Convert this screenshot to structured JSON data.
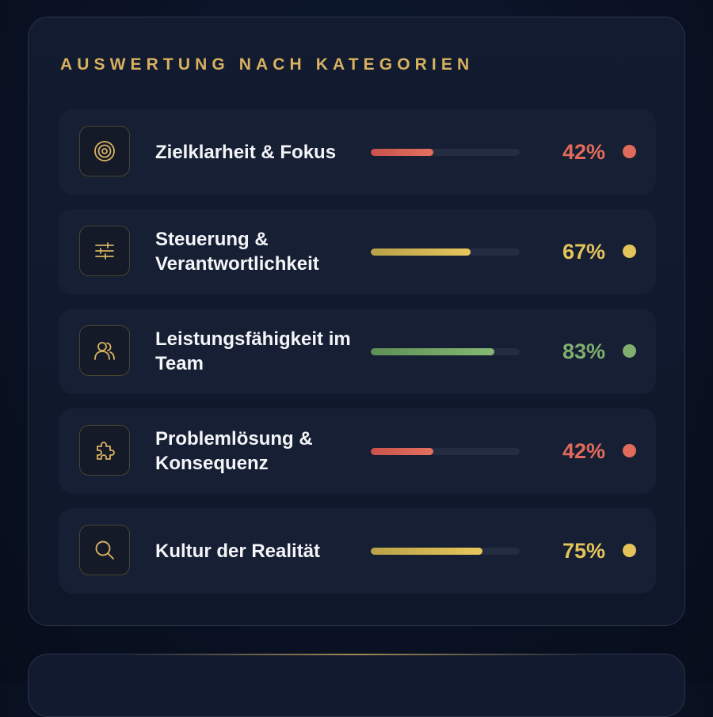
{
  "section": {
    "title": "AUSWERTUNG NACH KATEGORIEN"
  },
  "colors": {
    "accent_gold": "#d9b25f",
    "low_red": "#e06b5c",
    "mid_yellow": "#e3c35a",
    "high_green": "#7fae6e"
  },
  "categories": [
    {
      "label": "Zielklarheit & Fokus",
      "percent_text": "42%",
      "value": 0.42,
      "status": "low",
      "color": "#e06b5c",
      "icon": "target-icon"
    },
    {
      "label": "Steuerung & Verantwortlichkeit",
      "percent_text": "67%",
      "value": 0.67,
      "status": "mid",
      "color": "#e3c35a",
      "icon": "sliders-icon"
    },
    {
      "label": "Leistungsfähigkeit im Team",
      "percent_text": "83%",
      "value": 0.83,
      "status": "high",
      "color": "#7fae6e",
      "icon": "users-icon"
    },
    {
      "label": "Problemlösung & Konsequenz",
      "percent_text": "42%",
      "value": 0.42,
      "status": "low",
      "color": "#e06b5c",
      "icon": "puzzle-icon"
    },
    {
      "label": "Kultur der Realität",
      "percent_text": "75%",
      "value": 0.75,
      "status": "mid",
      "color": "#e3c35a",
      "icon": "search-icon"
    }
  ]
}
